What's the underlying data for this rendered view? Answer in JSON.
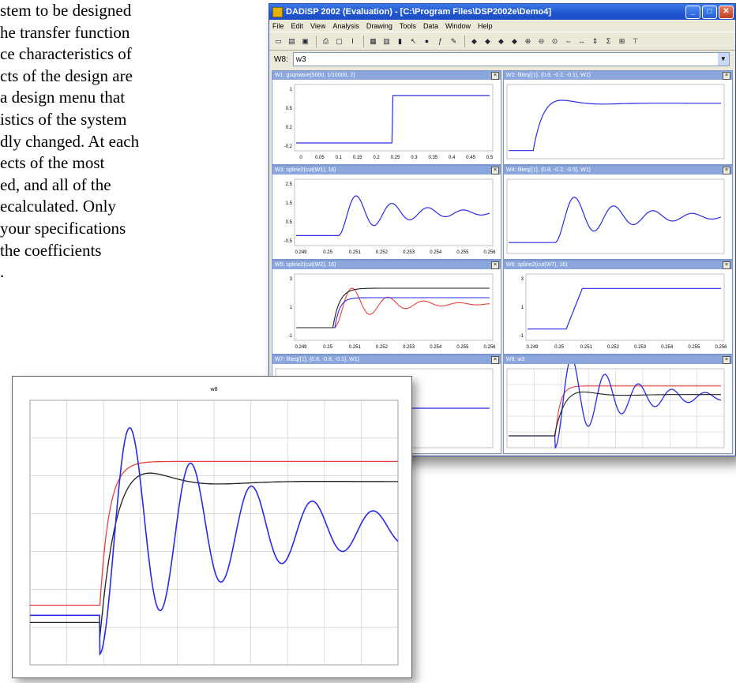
{
  "document": {
    "lines": [
      "stem to be designed",
      "he transfer function",
      "ce characteristics of",
      "cts of the design are",
      "a design menu that",
      "istics of the system",
      "dly changed. At each",
      "ects of the most",
      "ed, and all of the",
      "ecalculated. Only",
      "your specifications",
      " the coefficients",
      "."
    ]
  },
  "window": {
    "title": "DADiSP 2002 (Evaluation) - [C:\\Program Files\\DSP2002e\\Demo4]",
    "minimize": "_",
    "maximize": "□",
    "close": "✕"
  },
  "menu": [
    "File",
    "Edit",
    "View",
    "Analysis",
    "Drawing",
    "Tools",
    "Data",
    "Window",
    "Help"
  ],
  "toolbar_icons": [
    "new-icon",
    "open-icon",
    "save-icon",
    "sep",
    "print-icon",
    "print-preview-icon",
    "italic-icon",
    "sep",
    "table-icon",
    "grid-icon",
    "chart-icon",
    "pointer-icon",
    "stop-icon",
    "function-icon",
    "edit-icon",
    "sep",
    "arrow-left-icon",
    "arrow-right-icon",
    "arrow-up-icon",
    "arrow-down-icon",
    "zoom-in-icon",
    "zoom-out-icon",
    "zoom-fit-icon",
    "scroll-icon",
    "expand-icon",
    "compress-icon",
    "sum-icon",
    "window-icon",
    "cursor-icon"
  ],
  "toolbar_glyphs": {
    "new-icon": "▭",
    "open-icon": "▤",
    "save-icon": "▣",
    "print-icon": "⎙",
    "print-preview-icon": "▢",
    "italic-icon": "I",
    "table-icon": "▦",
    "grid-icon": "▥",
    "chart-icon": "▮",
    "pointer-icon": "↖",
    "stop-icon": "●",
    "function-icon": "ƒ",
    "edit-icon": "✎",
    "arrow-left-icon": "◆",
    "arrow-right-icon": "◆",
    "arrow-up-icon": "◆",
    "arrow-down-icon": "◆",
    "zoom-in-icon": "⊕",
    "zoom-out-icon": "⊖",
    "zoom-fit-icon": "⊙",
    "scroll-icon": "⇔",
    "expand-icon": "↔",
    "compress-icon": "⇕",
    "sum-icon": "Σ",
    "window-icon": "⊞",
    "cursor-icon": "⊤"
  },
  "combo": {
    "label": "W8:",
    "value": "w3",
    "arrow": "▼"
  },
  "panels": [
    {
      "id": "W1",
      "title": "W1: gsqrwave(5000, 1/10000, 2)",
      "yticks": [
        "1",
        "0.5",
        "0.2",
        "-0.2"
      ],
      "xticks": [
        "0",
        "0.05",
        "0.1",
        "0.15",
        "0.2",
        "0.25",
        "0.3",
        "0.35",
        "0.4",
        "0.45",
        "0.5"
      ]
    },
    {
      "id": "W2",
      "title": "W2: filteq({1}, {0.8, -0.2, -0.1}, W1)",
      "yticks": [],
      "xticks": []
    },
    {
      "id": "W3",
      "title": "W3: spline2(cut(W1), 16)",
      "yticks": [
        "2.5",
        "1.5",
        "0.5",
        "-0.5"
      ],
      "xticks": [
        "0.249",
        "0.25",
        "0.251",
        "0.252",
        "0.253",
        "0.254",
        "0.255",
        "0.256"
      ]
    },
    {
      "id": "W4",
      "title": "W4: filteq({1}, {0.8, -0.2, -0.5}, W1)",
      "yticks": [],
      "xticks": []
    },
    {
      "id": "W5",
      "title": "W5: spline2(cut(W2), 16)",
      "yticks": [
        "3",
        "1",
        "-1"
      ],
      "xticks": [
        "0.249",
        "0.25",
        "0.251",
        "0.252",
        "0.253",
        "0.254",
        "0.255",
        "0.256"
      ]
    },
    {
      "id": "W6",
      "title": "W6: spline2(cut(W7), 16)",
      "yticks": [
        "3",
        "1",
        "-1"
      ],
      "xticks": [
        "0.249",
        "0.25",
        "0.251",
        "0.252",
        "0.253",
        "0.254",
        "0.255",
        "0.256"
      ]
    },
    {
      "id": "W7",
      "title": "W7: filteq({1}, {0.8, -0.8, -0.1}, W1)",
      "yticks": [],
      "xticks": []
    },
    {
      "id": "W8",
      "title": "W8: w3",
      "yticks": [],
      "xticks": []
    }
  ],
  "zoom_plot": {
    "title": "w8"
  },
  "colors": {
    "blue": "#2a2ae6",
    "red": "#e8403c",
    "black": "#202020",
    "grid": "#c8c8c8"
  }
}
